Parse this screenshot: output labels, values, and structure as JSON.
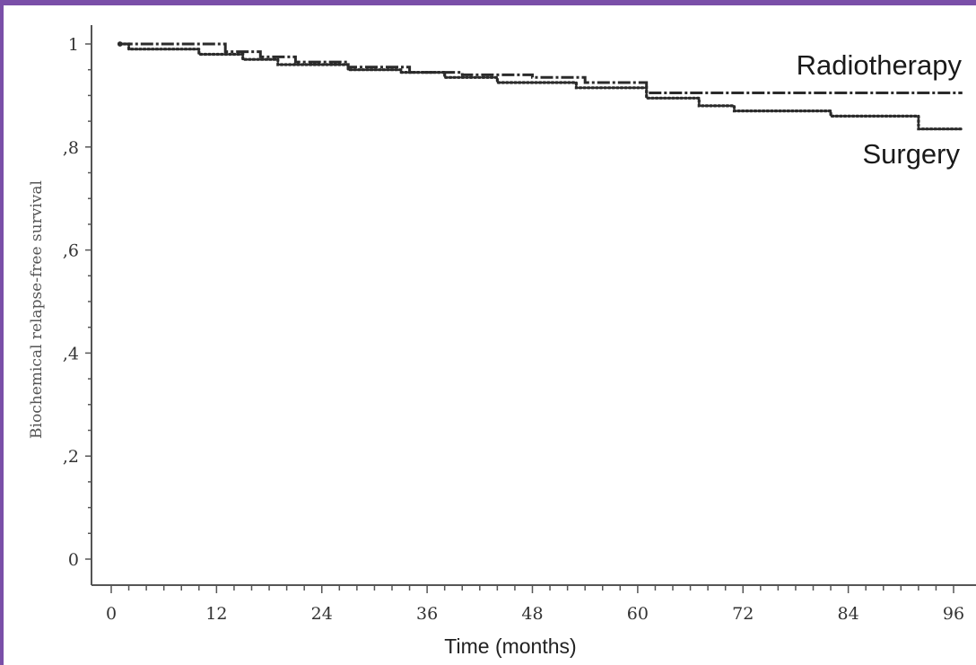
{
  "chart_data": {
    "type": "line",
    "subtype": "kaplan-meier-step",
    "title": "",
    "xlabel": "Time (months)",
    "ylabel": "Biochemical relapse-free survival",
    "xlim": [
      0,
      97
    ],
    "ylim": [
      0,
      1
    ],
    "x_ticks": [
      0,
      12,
      24,
      36,
      48,
      60,
      72,
      84,
      96
    ],
    "x_tick_labels": [
      "0",
      "12",
      "24",
      "36",
      "48",
      "60",
      "72",
      "84",
      "96"
    ],
    "y_ticks": [
      0,
      0.2,
      0.4,
      0.6,
      0.8,
      1
    ],
    "y_tick_labels": [
      "0",
      ",2",
      ",4",
      ",6",
      ",8",
      "1"
    ],
    "grid": false,
    "legend": "direct labels at right end of lines",
    "series": [
      {
        "name": "Radiotherapy",
        "color": "#2b2b2b",
        "style": "dash-dot",
        "points": [
          [
            1,
            1.0
          ],
          [
            13,
            1.0
          ],
          [
            13,
            0.985
          ],
          [
            17,
            0.985
          ],
          [
            17,
            0.975
          ],
          [
            21,
            0.975
          ],
          [
            21,
            0.965
          ],
          [
            27,
            0.965
          ],
          [
            27,
            0.955
          ],
          [
            34,
            0.955
          ],
          [
            34,
            0.945
          ],
          [
            40,
            0.945
          ],
          [
            40,
            0.94
          ],
          [
            48,
            0.94
          ],
          [
            48,
            0.935
          ],
          [
            54,
            0.935
          ],
          [
            54,
            0.925
          ],
          [
            61,
            0.925
          ],
          [
            61,
            0.905
          ],
          [
            97,
            0.905
          ]
        ]
      },
      {
        "name": "Surgery",
        "color": "#2b2b2b",
        "style": "dotted",
        "points": [
          [
            1,
            1.0
          ],
          [
            2,
            1.0
          ],
          [
            2,
            0.99
          ],
          [
            10,
            0.99
          ],
          [
            10,
            0.98
          ],
          [
            15,
            0.98
          ],
          [
            15,
            0.97
          ],
          [
            19,
            0.97
          ],
          [
            19,
            0.96
          ],
          [
            27,
            0.96
          ],
          [
            27,
            0.95
          ],
          [
            33,
            0.95
          ],
          [
            33,
            0.945
          ],
          [
            38,
            0.945
          ],
          [
            38,
            0.935
          ],
          [
            44,
            0.935
          ],
          [
            44,
            0.925
          ],
          [
            53,
            0.925
          ],
          [
            53,
            0.915
          ],
          [
            61,
            0.915
          ],
          [
            61,
            0.895
          ],
          [
            67,
            0.895
          ],
          [
            67,
            0.88
          ],
          [
            71,
            0.88
          ],
          [
            71,
            0.87
          ],
          [
            82,
            0.87
          ],
          [
            82,
            0.86
          ],
          [
            92,
            0.86
          ],
          [
            92,
            0.835
          ],
          [
            97,
            0.835
          ]
        ]
      }
    ]
  }
}
